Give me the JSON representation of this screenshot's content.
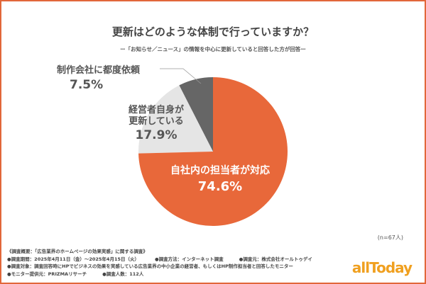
{
  "title": "更新はどのような体制で行っていますか？",
  "subtitle": "ー「お知らせ／ニュース」の情報を中心に更新していると回答した方が回答ー",
  "n_label": "(n=67人)",
  "chart_data": {
    "type": "pie",
    "title": "更新はどのような体制で行っていますか？",
    "slices": [
      {
        "label": "自社内の担当者が対応",
        "value": 74.6,
        "value_label": "74.6%",
        "color": "#e8683a"
      },
      {
        "label": "経営者自身が更新している",
        "label_lines": [
          "経営者自身が",
          "更新している"
        ],
        "value": 17.9,
        "value_label": "17.9%",
        "color": "#e5e5e5"
      },
      {
        "label": "制作会社に都度依頼",
        "value": 7.5,
        "value_label": "7.5%",
        "color": "#666666"
      }
    ],
    "start": "12 o'clock",
    "direction": "clockwise"
  },
  "notes": {
    "heading": "《調査概要：「広告業界のホームページの効果実感」に関する調査》",
    "period": "●調査期間：2025年4月11日（金）〜2025年4月15日（火）",
    "method": "●調査方法：インターネット調査",
    "source": "●調査元：株式会社オールトゥデイ",
    "target": "●調査対象：調査回答時にHPでビジネスの効果を実感している広告業界の中小企業の経営者、もしくはHP制作担当者と回答したモニター",
    "provider": "●モニター提供元：PRIZMAリサーチ",
    "count": "●調査人数：112人"
  },
  "logo": {
    "text": "allToday",
    "color": "#f0a020"
  },
  "accent": "#e2673a"
}
